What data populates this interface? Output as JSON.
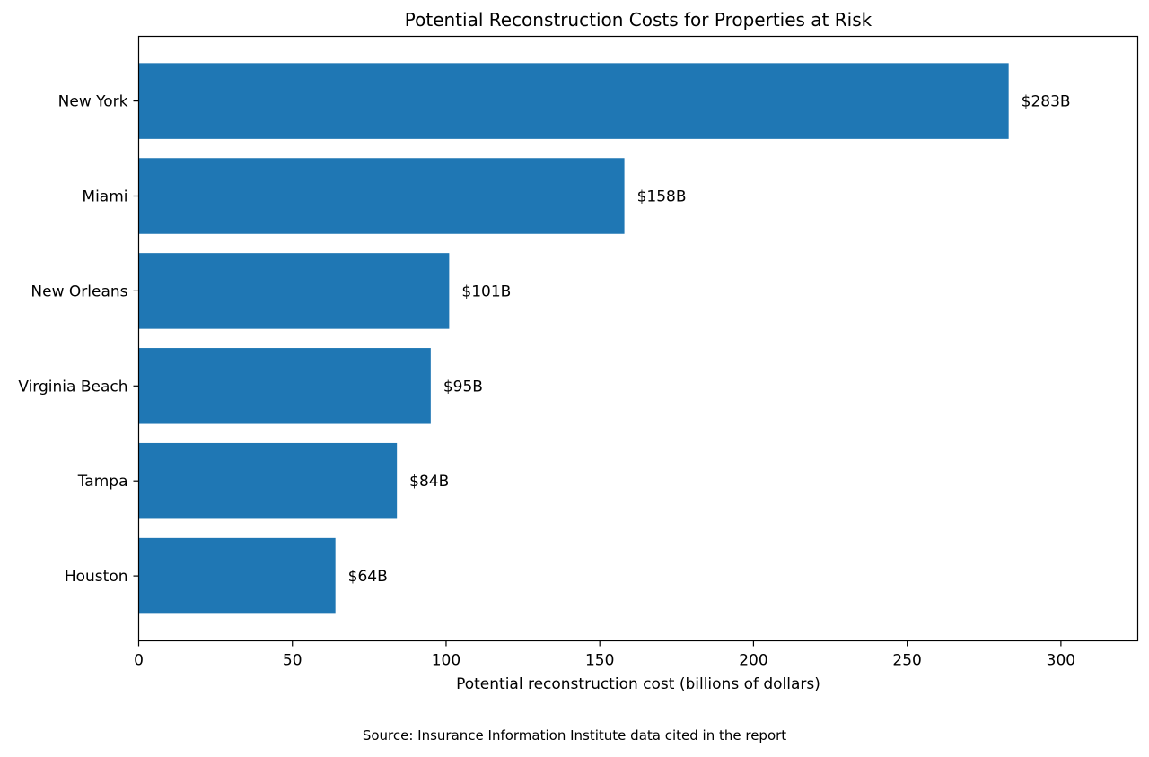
{
  "chart_data": {
    "type": "bar",
    "orientation": "horizontal",
    "title": "Potential Reconstruction Costs for Properties at Risk",
    "xlabel": "Potential reconstruction cost (billions of dollars)",
    "ylabel": "",
    "categories": [
      "New York",
      "Miami",
      "New Orleans",
      "Virginia Beach",
      "Tampa",
      "Houston"
    ],
    "values": [
      283,
      158,
      101,
      95,
      84,
      64
    ],
    "value_labels": [
      "$283B",
      "$158B",
      "$101B",
      "$95B",
      "$84B",
      "$64B"
    ],
    "xlim": [
      0,
      325
    ],
    "xticks": [
      0,
      50,
      100,
      150,
      200,
      250,
      300
    ],
    "grid": false,
    "legend": "none",
    "bar_color": "#1f77b4"
  },
  "footer": {
    "source": "Source: Insurance Information Institute data cited in the report"
  }
}
